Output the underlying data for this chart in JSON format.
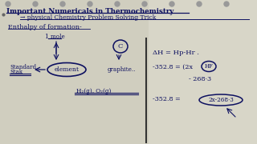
{
  "bg_color": "#c8c8b8",
  "paper_color": "#e8e6de",
  "title_line1": "Important Numericals in Thermochemistry",
  "title_line2": "→ physical Chemistry Problem Solving Trick",
  "section_title": "Enthalpy of formation-",
  "label_1mole": "1 mole",
  "label_element": "element",
  "label_standard_state": "Standard\nStak",
  "label_C": "C",
  "label_graphite": "graphite..",
  "label_H2O2": "H₂(g), O₂(g)",
  "eq1": "ΔH = Hp-Hr .",
  "eq2_pre": "-352.8 = (2x",
  "eq2_circ": "HF",
  "eq3": "- 268·3",
  "eq4_pre": "-352.8 = ",
  "eq4_circ": "2x-268·3",
  "ink": "#1a2080",
  "dark": "#0d1060",
  "spiral_color": "#999999",
  "sep_line_color": "#555555",
  "paper_left": "#dcdad0",
  "paper_right": "#e4e2d8"
}
